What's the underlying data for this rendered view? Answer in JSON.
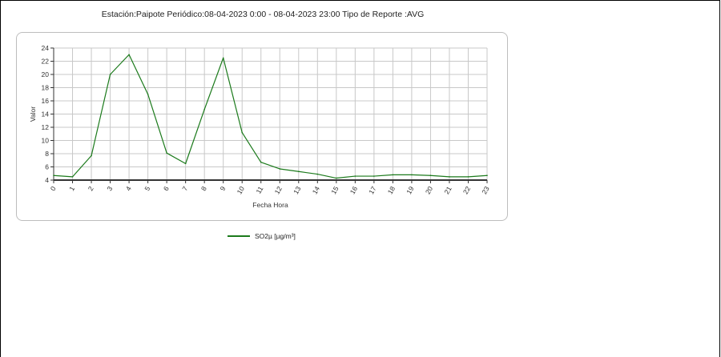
{
  "report": {
    "title": "Estación:Paipote Periódico:08-04-2023 0:00  -  08-04-2023 23:00 Tipo de Reporte :AVG"
  },
  "colors": {
    "series_line": "#1b7a1b",
    "grid": "#c8c8c8",
    "panel_border": "#bdbdbd",
    "axis": "#333333"
  },
  "chart_data": {
    "type": "line",
    "xlabel": "Fecha Hora",
    "ylabel": "Valor",
    "xlim": [
      0,
      23
    ],
    "ylim": [
      4,
      24
    ],
    "yticks": [
      4,
      6,
      8,
      10,
      12,
      14,
      16,
      18,
      20,
      22,
      24
    ],
    "x": [
      0,
      1,
      2,
      3,
      4,
      5,
      6,
      7,
      8,
      9,
      10,
      11,
      12,
      13,
      14,
      15,
      16,
      17,
      18,
      19,
      20,
      21,
      22,
      23
    ],
    "series": [
      {
        "name": "SO2µ [µg/m³]",
        "values": [
          4.7,
          4.5,
          7.7,
          20.0,
          23.0,
          17.0,
          8.1,
          6.5,
          14.7,
          22.5,
          11.2,
          6.7,
          5.7,
          5.3,
          4.9,
          4.3,
          4.6,
          4.6,
          4.8,
          4.8,
          4.7,
          4.5,
          4.5,
          4.7
        ]
      }
    ],
    "grid": true,
    "legend_position": "bottom-left"
  }
}
